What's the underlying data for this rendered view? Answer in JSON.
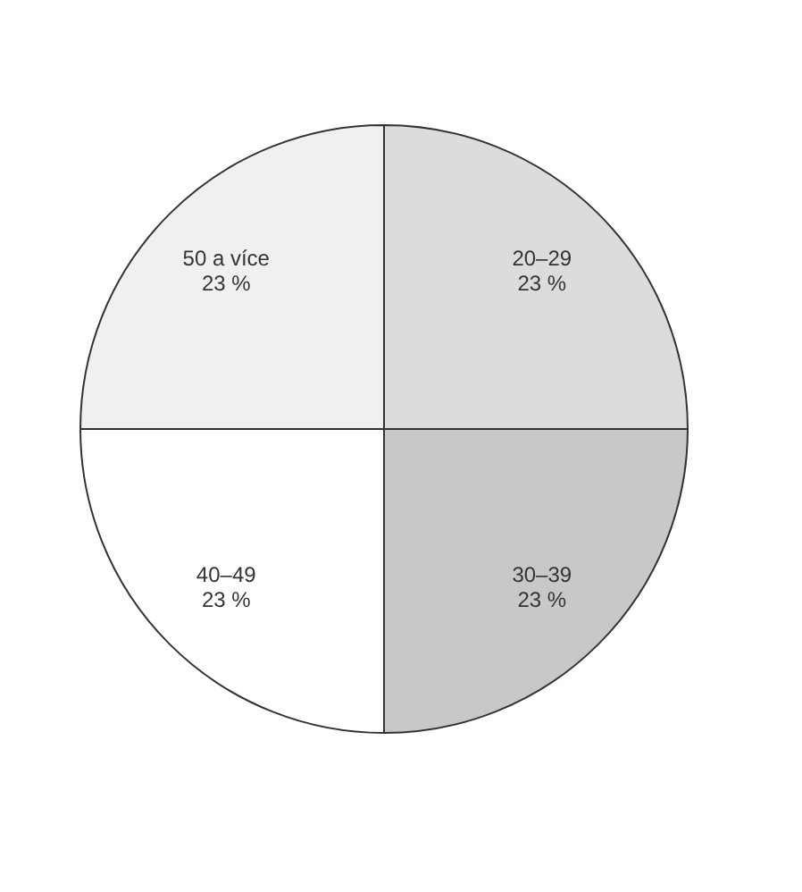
{
  "chart_data": {
    "type": "pie",
    "categories": [
      "20–29",
      "30–39",
      "40–49",
      "50 a více"
    ],
    "values": [
      23,
      23,
      23,
      23
    ],
    "value_labels": [
      "23 %",
      "23 %",
      "23 %",
      "23 %"
    ],
    "colors": [
      "#dcdcdc",
      "#c8c8c8",
      "#ffffff",
      "#f0f0f0"
    ],
    "legend": false
  }
}
